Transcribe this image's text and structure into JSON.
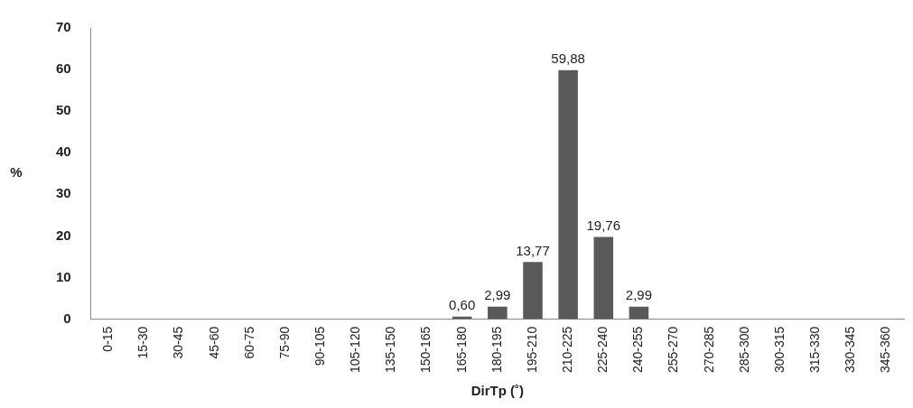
{
  "chart_data": {
    "type": "bar",
    "xlabel": "DirTp (˚)",
    "ylabel": "%",
    "categories": [
      "0-15",
      "15-30",
      "30-45",
      "45-60",
      "60-75",
      "75-90",
      "90-105",
      "105-120",
      "135-150",
      "150-165",
      "165-180",
      "180-195",
      "195-210",
      "210-225",
      "225-240",
      "240-255",
      "255-270",
      "270-285",
      "285-300",
      "300-315",
      "315-330",
      "330-345",
      "345-360"
    ],
    "values": [
      0,
      0,
      0,
      0,
      0,
      0,
      0,
      0,
      0,
      0,
      0.6,
      2.99,
      13.77,
      59.88,
      19.76,
      2.99,
      0,
      0,
      0,
      0,
      0,
      0,
      0
    ],
    "value_labels": [
      null,
      null,
      null,
      null,
      null,
      null,
      null,
      null,
      null,
      null,
      "0,60",
      "2,99",
      "13,77",
      "59,88",
      "19,76",
      "2,99",
      null,
      null,
      null,
      null,
      null,
      null,
      null
    ],
    "color": "#595959",
    "ylim": [
      0,
      70
    ],
    "yticks": [
      0,
      10,
      20,
      30,
      40,
      50,
      60,
      70
    ],
    "grid": false,
    "legend": false
  }
}
